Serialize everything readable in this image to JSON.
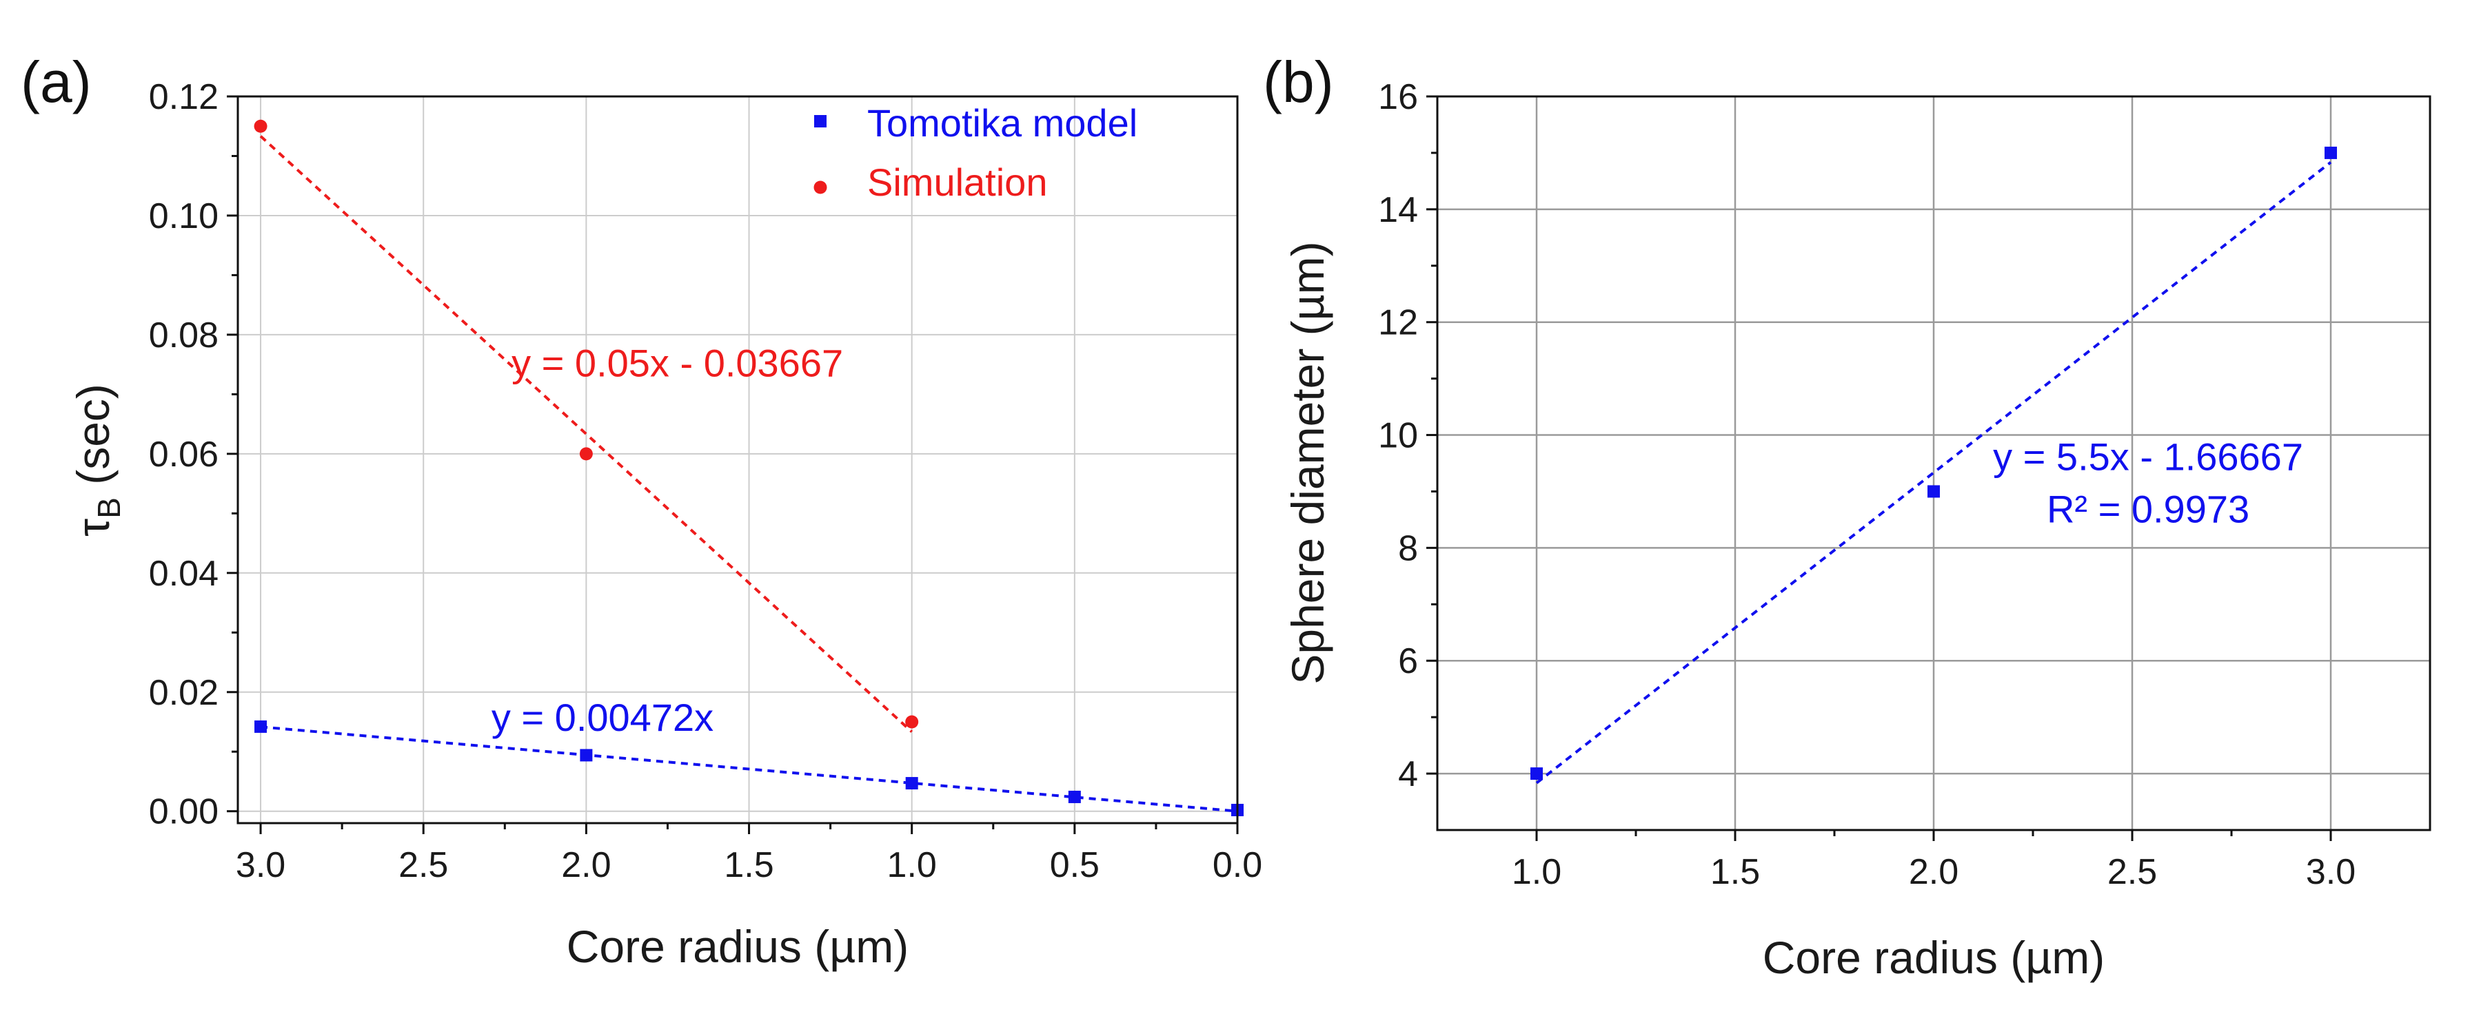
{
  "colors": {
    "tomotika": "#1010ee",
    "simulation": "#ee1c1c",
    "axis": "#111111"
  },
  "chart_data": [
    {
      "panel_label": "(a)",
      "type": "scatter",
      "xlabel_main": "Core radius ",
      "xlabel_unit": "(µm)",
      "ylabel_main": "τ",
      "ylabel_sub": "B",
      "ylabel_rest": " (sec)",
      "xlim": [
        3.07,
        0.0
      ],
      "ylim": [
        -0.002,
        0.12
      ],
      "x_ticks": [
        3.0,
        2.5,
        2.0,
        1.5,
        1.0,
        0.5,
        0.0
      ],
      "x_tick_labels": [
        "3.0",
        "2.5",
        "2.0",
        "1.5",
        "1.0",
        "0.5",
        "0.0"
      ],
      "y_ticks": [
        0.0,
        0.02,
        0.04,
        0.06,
        0.08,
        0.1,
        0.12
      ],
      "y_tick_labels": [
        "0.00",
        "0.02",
        "0.04",
        "0.06",
        "0.08",
        "0.10",
        "0.12"
      ],
      "grid": true,
      "legend_position": "top-right",
      "series": [
        {
          "name": "Tomotika model",
          "marker": "square",
          "color": "#1010ee",
          "x": [
            3.0,
            2.0,
            1.0,
            0.5,
            0.0
          ],
          "y": [
            0.0142,
            0.0094,
            0.0047,
            0.0024,
            0.0002
          ],
          "fit": {
            "equation": "y = 0.00472x",
            "slope": 0.00472,
            "intercept": 0.0,
            "x_range": [
              3.0,
              0.0
            ],
            "label_at": [
              1.95,
              0.0135
            ]
          }
        },
        {
          "name": "Simulation",
          "marker": "circle",
          "color": "#ee1c1c",
          "x": [
            3.0,
            2.0,
            1.0
          ],
          "y": [
            0.115,
            0.06,
            0.015
          ],
          "fit": {
            "equation": "y = 0.05x - 0.03667",
            "slope": 0.05,
            "intercept": -0.03667,
            "x_range": [
              3.0,
              1.0
            ],
            "label_at": [
              1.72,
              0.073
            ]
          }
        }
      ]
    },
    {
      "panel_label": "(b)",
      "type": "scatter",
      "xlabel_main": "Core radius ",
      "xlabel_unit": "(µm)",
      "ylabel_main": "Sphere diameter ",
      "ylabel_unit": "(µm)",
      "xlim": [
        0.75,
        3.25
      ],
      "ylim": [
        3.0,
        16.0
      ],
      "x_ticks": [
        1.0,
        1.5,
        2.0,
        2.5,
        3.0
      ],
      "x_tick_labels": [
        "1.0",
        "1.5",
        "2.0",
        "2.5",
        "3.0"
      ],
      "y_ticks": [
        4,
        6,
        8,
        10,
        12,
        14,
        16
      ],
      "y_tick_labels": [
        "4",
        "6",
        "8",
        "10",
        "12",
        "14",
        "16"
      ],
      "grid": true,
      "series": [
        {
          "name": "Sphere diameter",
          "marker": "square",
          "color": "#1010ee",
          "x": [
            1.0,
            2.0,
            3.0
          ],
          "y": [
            4.0,
            9.0,
            15.0
          ],
          "fit": {
            "equation": "y = 5.5x - 1.66667",
            "r_squared": "R² = 0.9973",
            "slope": 5.5,
            "intercept": -1.66667,
            "x_range": [
              1.0,
              3.0
            ],
            "label_at": [
              2.54,
              9.38
            ]
          }
        }
      ]
    }
  ]
}
